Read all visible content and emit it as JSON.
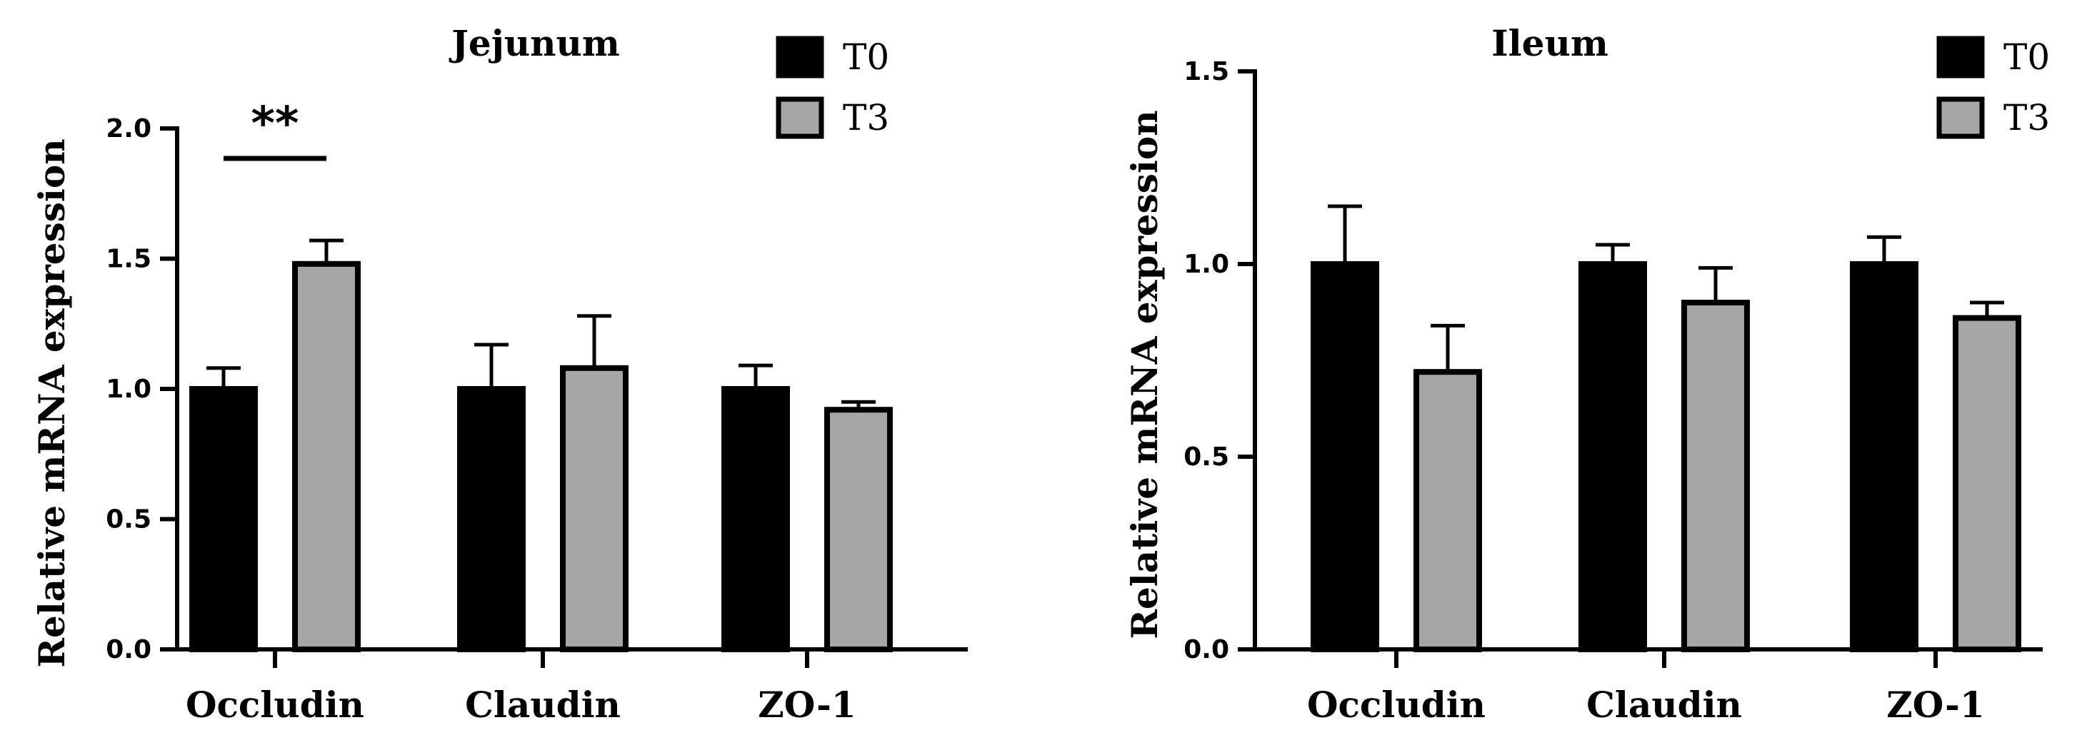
{
  "chart_data": [
    {
      "type": "bar",
      "title": "Jejunum",
      "xlabel": "",
      "ylabel": "Relative mRNA expression",
      "categories": [
        "Occludin",
        "Claudin",
        "ZO-1"
      ],
      "ylim": [
        0,
        2.0
      ],
      "yticks": [
        "0.0",
        "0.5",
        "1.0",
        "1.5",
        "2.0"
      ],
      "grid": false,
      "legend_position": "top-right",
      "series": [
        {
          "name": "T0",
          "color": "#000000",
          "values": [
            1.0,
            1.0,
            1.0
          ],
          "errors": [
            0.08,
            0.17,
            0.09
          ]
        },
        {
          "name": "T3",
          "color": "#a6a6a6",
          "values": [
            1.48,
            1.08,
            0.92
          ],
          "errors": [
            0.09,
            0.2,
            0.03
          ]
        }
      ],
      "annotations": [
        {
          "text": "**",
          "category": "Occludin"
        }
      ]
    },
    {
      "type": "bar",
      "title": "Ileum",
      "xlabel": "",
      "ylabel": "Relative mRNA expression",
      "categories": [
        "Occludin",
        "Claudin",
        "ZO-1"
      ],
      "ylim": [
        0,
        1.5
      ],
      "yticks": [
        "0.0",
        "0.5",
        "1.0",
        "1.5"
      ],
      "grid": false,
      "legend_position": "top-right",
      "series": [
        {
          "name": "T0",
          "color": "#000000",
          "values": [
            1.0,
            1.0,
            1.0
          ],
          "errors": [
            0.15,
            0.05,
            0.07
          ]
        },
        {
          "name": "T3",
          "color": "#a6a6a6",
          "values": [
            0.72,
            0.9,
            0.86
          ],
          "errors": [
            0.12,
            0.09,
            0.04
          ]
        }
      ],
      "annotations": []
    }
  ]
}
